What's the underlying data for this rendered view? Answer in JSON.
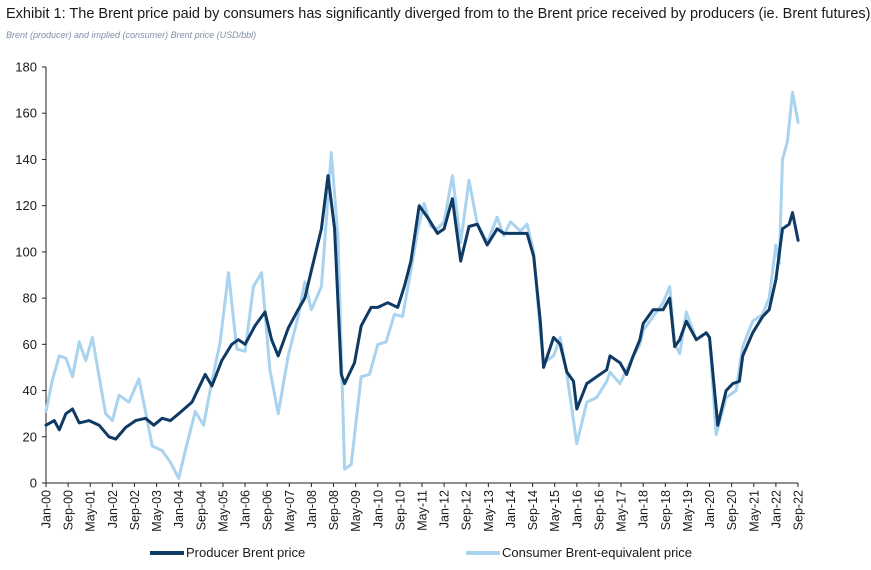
{
  "title": "Exhibit 1: The Brent price paid by consumers has significantly diverged from to the Brent price received by producers (ie. Brent futures)",
  "subtitle": "Brent (producer) and implied (consumer) Brent price (USD/bbl)",
  "colors": {
    "producer": "#0e3a63",
    "consumer": "#a9d3ee",
    "axis": "#222222"
  },
  "chart_data": {
    "type": "line",
    "title": "Exhibit 1: The Brent price paid by consumers has significantly diverged from to the Brent price received by producers (ie. Brent futures)",
    "ylabel": "USD/bbl",
    "ylim": [
      0,
      180
    ],
    "yticks": [
      "0",
      "20",
      "40",
      "60",
      "80",
      "100",
      "120",
      "140",
      "160",
      "180"
    ],
    "xlabel": "",
    "x_range": [
      "Jan-00",
      "Sep-22"
    ],
    "xticks": [
      "Jan-00",
      "Sep-00",
      "May-01",
      "Jan-02",
      "Sep-02",
      "May-03",
      "Jan-04",
      "Sep-04",
      "May-05",
      "Jan-06",
      "Sep-06",
      "May-07",
      "Jan-08",
      "Sep-08",
      "May-09",
      "Jan-10",
      "Sep-10",
      "May-11",
      "Jan-12",
      "Sep-12",
      "May-13",
      "Jan-14",
      "Sep-14",
      "May-15",
      "Jan-16",
      "Sep-16",
      "May-17",
      "Jan-18",
      "Sep-18",
      "May-19",
      "Jan-20",
      "Sep-20",
      "May-21",
      "Jan-22",
      "Sep-22"
    ],
    "grid": false,
    "legend_position": "bottom",
    "series": [
      {
        "name": "Producer Brent price",
        "points": [
          [
            2000.0,
            25
          ],
          [
            2000.25,
            27
          ],
          [
            2000.4,
            23
          ],
          [
            2000.6,
            30
          ],
          [
            2000.8,
            32
          ],
          [
            2001.0,
            26
          ],
          [
            2001.3,
            27
          ],
          [
            2001.6,
            25
          ],
          [
            2001.9,
            20
          ],
          [
            2002.1,
            19
          ],
          [
            2002.4,
            24
          ],
          [
            2002.7,
            27
          ],
          [
            2003.0,
            28
          ],
          [
            2003.25,
            25
          ],
          [
            2003.5,
            28
          ],
          [
            2003.75,
            27
          ],
          [
            2004.0,
            30
          ],
          [
            2004.4,
            35
          ],
          [
            2004.6,
            41
          ],
          [
            2004.8,
            47
          ],
          [
            2005.0,
            42
          ],
          [
            2005.3,
            53
          ],
          [
            2005.6,
            60
          ],
          [
            2005.8,
            62
          ],
          [
            2006.0,
            60
          ],
          [
            2006.3,
            68
          ],
          [
            2006.6,
            74
          ],
          [
            2006.8,
            62
          ],
          [
            2007.0,
            55
          ],
          [
            2007.3,
            67
          ],
          [
            2007.6,
            75
          ],
          [
            2007.8,
            80
          ],
          [
            2008.0,
            92
          ],
          [
            2008.3,
            110
          ],
          [
            2008.5,
            133
          ],
          [
            2008.7,
            110
          ],
          [
            2008.9,
            47
          ],
          [
            2009.0,
            43
          ],
          [
            2009.3,
            52
          ],
          [
            2009.5,
            68
          ],
          [
            2009.8,
            76
          ],
          [
            2010.0,
            76
          ],
          [
            2010.3,
            78
          ],
          [
            2010.6,
            76
          ],
          [
            2010.8,
            85
          ],
          [
            2011.0,
            96
          ],
          [
            2011.25,
            120
          ],
          [
            2011.5,
            115
          ],
          [
            2011.8,
            108
          ],
          [
            2012.0,
            110
          ],
          [
            2012.25,
            123
          ],
          [
            2012.5,
            96
          ],
          [
            2012.75,
            111
          ],
          [
            2013.0,
            112
          ],
          [
            2013.3,
            103
          ],
          [
            2013.6,
            110
          ],
          [
            2013.8,
            108
          ],
          [
            2014.0,
            108
          ],
          [
            2014.3,
            108
          ],
          [
            2014.5,
            108
          ],
          [
            2014.7,
            98
          ],
          [
            2014.9,
            70
          ],
          [
            2015.0,
            50
          ],
          [
            2015.3,
            63
          ],
          [
            2015.5,
            60
          ],
          [
            2015.7,
            48
          ],
          [
            2015.9,
            44
          ],
          [
            2016.0,
            32
          ],
          [
            2016.3,
            43
          ],
          [
            2016.6,
            46
          ],
          [
            2016.9,
            49
          ],
          [
            2017.0,
            55
          ],
          [
            2017.3,
            52
          ],
          [
            2017.5,
            47
          ],
          [
            2017.7,
            55
          ],
          [
            2017.9,
            62
          ],
          [
            2018.0,
            69
          ],
          [
            2018.3,
            75
          ],
          [
            2018.6,
            75
          ],
          [
            2018.8,
            80
          ],
          [
            2018.95,
            59
          ],
          [
            2019.1,
            62
          ],
          [
            2019.3,
            70
          ],
          [
            2019.6,
            62
          ],
          [
            2019.9,
            65
          ],
          [
            2020.0,
            63
          ],
          [
            2020.25,
            25
          ],
          [
            2020.5,
            40
          ],
          [
            2020.7,
            43
          ],
          [
            2020.9,
            44
          ],
          [
            2021.0,
            55
          ],
          [
            2021.3,
            65
          ],
          [
            2021.6,
            72
          ],
          [
            2021.8,
            75
          ],
          [
            2022.0,
            88
          ],
          [
            2022.2,
            110
          ],
          [
            2022.4,
            112
          ],
          [
            2022.5,
            117
          ],
          [
            2022.67,
            105
          ]
        ]
      },
      {
        "name": "Consumer Brent-equivalent price",
        "points": [
          [
            2000.0,
            31
          ],
          [
            2000.2,
            45
          ],
          [
            2000.4,
            55
          ],
          [
            2000.6,
            54
          ],
          [
            2000.8,
            46
          ],
          [
            2001.0,
            61
          ],
          [
            2001.2,
            53
          ],
          [
            2001.4,
            63
          ],
          [
            2001.6,
            46
          ],
          [
            2001.8,
            30
          ],
          [
            2002.0,
            27
          ],
          [
            2002.2,
            38
          ],
          [
            2002.5,
            35
          ],
          [
            2002.8,
            45
          ],
          [
            2003.0,
            31
          ],
          [
            2003.2,
            16
          ],
          [
            2003.5,
            14
          ],
          [
            2003.75,
            9
          ],
          [
            2004.0,
            2
          ],
          [
            2004.2,
            14
          ],
          [
            2004.5,
            31
          ],
          [
            2004.75,
            25
          ],
          [
            2005.0,
            44
          ],
          [
            2005.25,
            61
          ],
          [
            2005.5,
            91
          ],
          [
            2005.75,
            58
          ],
          [
            2006.0,
            57
          ],
          [
            2006.25,
            85
          ],
          [
            2006.5,
            91
          ],
          [
            2006.75,
            49
          ],
          [
            2007.0,
            30
          ],
          [
            2007.3,
            55
          ],
          [
            2007.6,
            72
          ],
          [
            2007.8,
            87
          ],
          [
            2008.0,
            75
          ],
          [
            2008.3,
            85
          ],
          [
            2008.6,
            143
          ],
          [
            2008.8,
            106
          ],
          [
            2009.0,
            6
          ],
          [
            2009.2,
            8
          ],
          [
            2009.5,
            46
          ],
          [
            2009.75,
            47
          ],
          [
            2010.0,
            60
          ],
          [
            2010.25,
            61
          ],
          [
            2010.5,
            73
          ],
          [
            2010.75,
            72
          ],
          [
            2011.0,
            92
          ],
          [
            2011.2,
            109
          ],
          [
            2011.4,
            121
          ],
          [
            2011.6,
            111
          ],
          [
            2011.8,
            110
          ],
          [
            2012.0,
            113
          ],
          [
            2012.25,
            133
          ],
          [
            2012.5,
            104
          ],
          [
            2012.75,
            131
          ],
          [
            2013.0,
            112
          ],
          [
            2013.3,
            104
          ],
          [
            2013.6,
            115
          ],
          [
            2013.8,
            107
          ],
          [
            2014.0,
            113
          ],
          [
            2014.3,
            109
          ],
          [
            2014.5,
            112
          ],
          [
            2014.7,
            100
          ],
          [
            2014.9,
            65
          ],
          [
            2015.0,
            52
          ],
          [
            2015.3,
            55
          ],
          [
            2015.5,
            63
          ],
          [
            2015.7,
            47
          ],
          [
            2015.9,
            27
          ],
          [
            2016.0,
            17
          ],
          [
            2016.3,
            35
          ],
          [
            2016.6,
            37
          ],
          [
            2016.9,
            44
          ],
          [
            2017.0,
            48
          ],
          [
            2017.3,
            43
          ],
          [
            2017.6,
            52
          ],
          [
            2017.9,
            60
          ],
          [
            2018.0,
            66
          ],
          [
            2018.3,
            72
          ],
          [
            2018.6,
            78
          ],
          [
            2018.8,
            85
          ],
          [
            2018.95,
            60
          ],
          [
            2019.1,
            56
          ],
          [
            2019.3,
            74
          ],
          [
            2019.6,
            62
          ],
          [
            2019.9,
            65
          ],
          [
            2020.0,
            63
          ],
          [
            2020.2,
            21
          ],
          [
            2020.5,
            37
          ],
          [
            2020.8,
            40
          ],
          [
            2021.0,
            59
          ],
          [
            2021.3,
            70
          ],
          [
            2021.6,
            73
          ],
          [
            2021.8,
            80
          ],
          [
            2022.0,
            103
          ],
          [
            2022.1,
            95
          ],
          [
            2022.2,
            140
          ],
          [
            2022.35,
            148
          ],
          [
            2022.5,
            169
          ],
          [
            2022.67,
            156
          ]
        ]
      }
    ]
  }
}
